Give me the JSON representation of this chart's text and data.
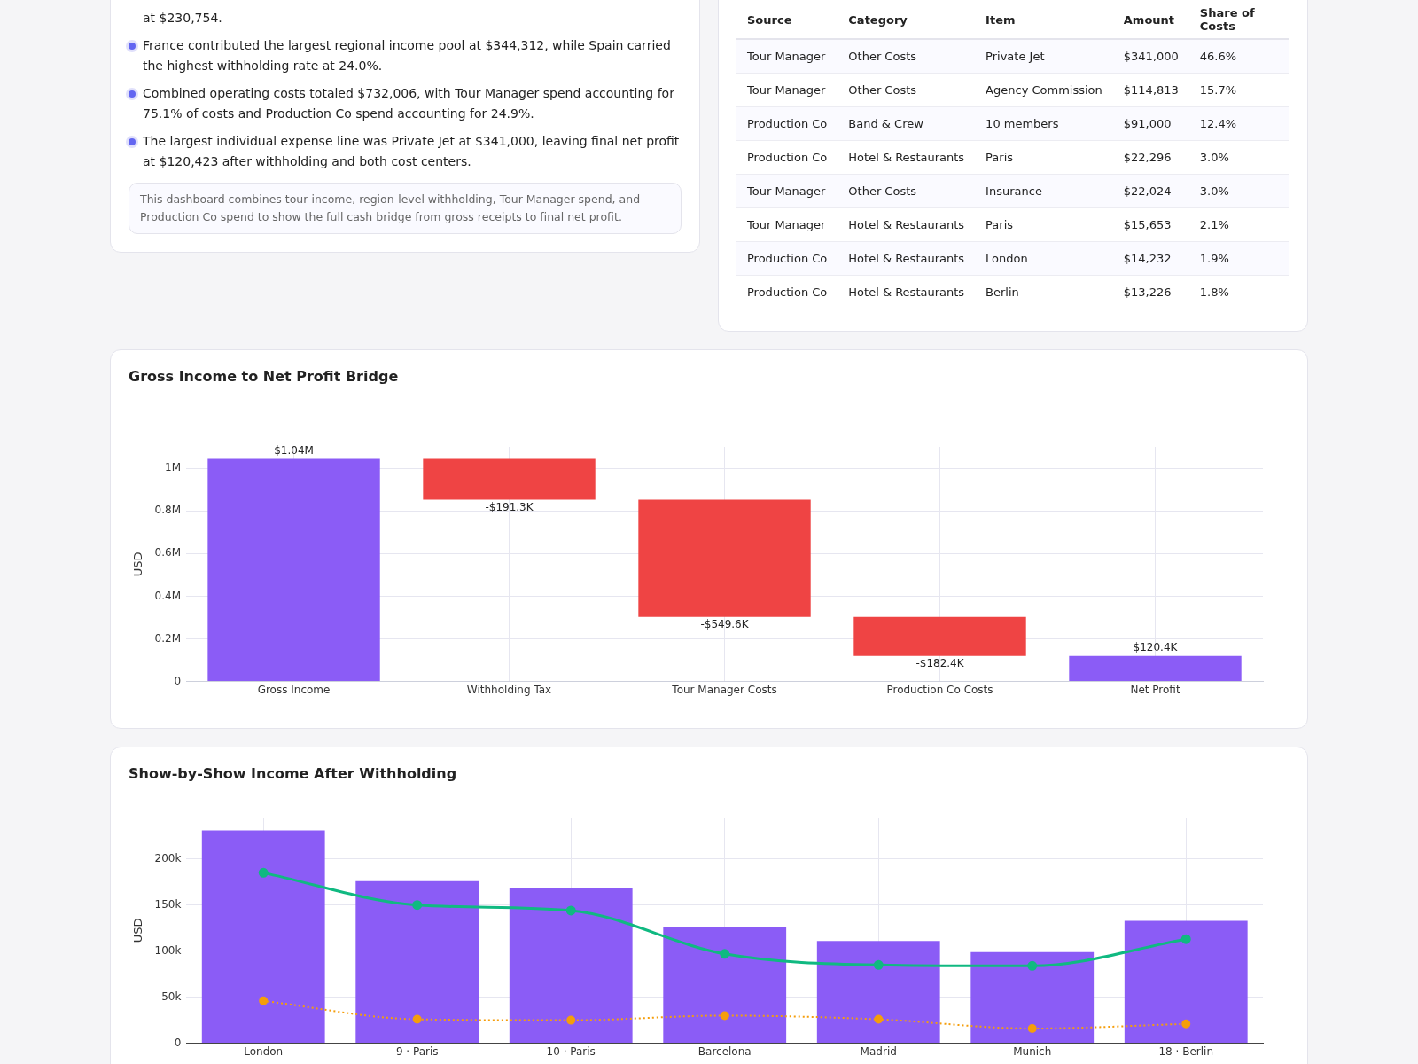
{
  "chart_data": [
    {
      "type": "other",
      "annotations": [
        "at $230,754.",
        "France contributed the largest regional income pool at $344,312, while Spain carried the highest withholding rate at 24.0%.",
        "Combined operating costs totaled $732,006, with Tour Manager spend accounting for 75.1% of costs and Production Co spend accounting for 24.9%.",
        "The largest individual expense line was Private Jet at $341,000, leaving final net profit at $120,423 after withholding and both cost centers.",
        "This dashboard combines tour income, region-level withholding, Tour Manager spend, and Production Co spend to show the full cash bridge from gross receipts to final net profit."
      ]
    },
    {
      "type": "other",
      "annotations": [
        "Source",
        "Category",
        "Item",
        "Amount",
        "Share of Costs",
        "Tour Manager",
        "Other Costs",
        "Private Jet",
        "$341,000",
        "46.6%",
        "Tour Manager",
        "Other Costs",
        "Agency Commission",
        "$114,813",
        "15.7%",
        "Production Co",
        "Band & Crew",
        "10 members",
        "$91,000",
        "12.4%",
        "Production Co",
        "Hotel & Restaurants",
        "Paris",
        "$22,296",
        "3.0%",
        "Tour Manager",
        "Other Costs",
        "Insurance",
        "$22,024",
        "3.0%",
        "Tour Manager",
        "Hotel & Restaurants",
        "Paris",
        "$15,653",
        "2.1%",
        "Production Co",
        "Hotel & Restaurants",
        "London",
        "$14,232",
        "1.9%",
        "Production Co",
        "Hotel & Restaurants",
        "Berlin",
        "$13,226",
        "1.8%"
      ]
    },
    {
      "type": "bar",
      "title": "Gross Income to Net Profit Bridge",
      "ylabel": "USD",
      "categories": [
        "Gross Income",
        "Withholding Tax",
        "Tour Manager Costs",
        "Production Co Costs",
        "Net Profit"
      ],
      "values": [
        1043700,
        -191300,
        -549600,
        -182400,
        120400
      ],
      "base": [
        0,
        1043700,
        852400,
        302800,
        0
      ],
      "colors": [
        "#8b5cf6",
        "#ef4444",
        "#ef4444",
        "#ef4444",
        "#8b5cf6"
      ],
      "value_labels": [
        "$1.04M",
        "-$191.3K",
        "-$549.6K",
        "-$182.4K",
        "$120.4K"
      ],
      "ylim": [
        0,
        1100000
      ],
      "yticks": [
        0,
        {
          "value": 200000,
          "label": "0.2M"
        },
        {
          "value": 400000,
          "label": "0.4M"
        },
        {
          "value": 600000,
          "label": "0.6M"
        },
        {
          "value": 800000,
          "label": "0.8M"
        },
        {
          "value": 1000000,
          "label": "1M"
        }
      ],
      "grid": true,
      "legend": false
    },
    {
      "type": "bar",
      "title": "Show-by-Show Income After Withholding",
      "ylabel": "USD",
      "categories": [
        "London",
        "9 · Paris",
        "10 · Paris",
        "Barcelona",
        "Madrid",
        "Munich",
        "18 · Berlin"
      ],
      "series": [
        {
          "type": "bar",
          "color": "#8b5cf6",
          "values": [
            231000,
            176000,
            169000,
            126000,
            111000,
            99000,
            133000
          ]
        },
        {
          "type": "line",
          "color": "#10b981",
          "line_style": "solid",
          "values": [
            185000,
            150000,
            144000,
            97000,
            85000,
            84000,
            113000
          ]
        },
        {
          "type": "line",
          "color": "#f59e0b",
          "line_style": "dotted",
          "values": [
            46000,
            26000,
            25000,
            30000,
            26000,
            16000,
            21000
          ]
        }
      ],
      "ylim": [
        0,
        245000
      ],
      "yticks": [
        0,
        {
          "value": 50000,
          "label": "50k"
        },
        {
          "value": 100000,
          "label": "100k"
        },
        {
          "value": 150000,
          "label": "150k"
        },
        {
          "value": 200000,
          "label": "200k"
        }
      ],
      "marker": "circle",
      "grid": true,
      "legend": false
    }
  ]
}
